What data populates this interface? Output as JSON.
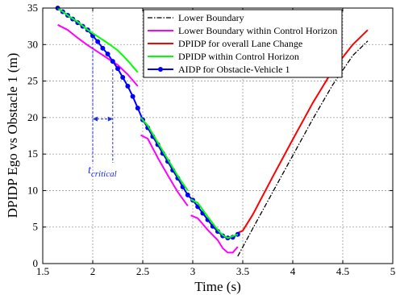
{
  "chart_data": {
    "type": "line",
    "title": "",
    "xlabel": "Time (s)",
    "ylabel": "DPIDP Ego vs Obstacle 1 (m)",
    "xlim": [
      1.5,
      5
    ],
    "ylim": [
      0,
      35
    ],
    "xticks": [
      "1.5",
      "2",
      "2.5",
      "3",
      "3.5",
      "4",
      "4.5",
      "5"
    ],
    "yticks": [
      "0",
      "5",
      "10",
      "15",
      "20",
      "25",
      "30",
      "35"
    ],
    "grid": true,
    "legend_position": "top-right",
    "annotation": "t_critical",
    "annotation_main": "t",
    "annotation_sub": "critical",
    "annotation_x": [
      2.0,
      2.2
    ],
    "series": [
      {
        "name": "Lower Boundary",
        "color": "#000000",
        "style": "dashdot",
        "segments": [
          [
            [
              3.45,
              1.0
            ],
            [
              3.6,
              4.8
            ],
            [
              3.8,
              9.8
            ],
            [
              4.0,
              14.8
            ],
            [
              4.2,
              19.8
            ],
            [
              4.4,
              24.5
            ],
            [
              4.6,
              28.5
            ],
            [
              4.75,
              30.5
            ]
          ]
        ]
      },
      {
        "name": "Lower Boundary within Control Horizon",
        "color": "#ff00ff",
        "style": "solid",
        "segments": [
          [
            [
              1.65,
              32.7
            ],
            [
              1.75,
              32.0
            ],
            [
              1.85,
              30.9
            ],
            [
              1.95,
              29.9
            ],
            [
              2.05,
              29.0
            ],
            [
              2.15,
              28.1
            ],
            [
              2.25,
              27.2
            ],
            [
              2.35,
              25.9
            ],
            [
              2.45,
              24.3
            ]
          ],
          [
            [
              2.48,
              17.6
            ],
            [
              2.55,
              17.1
            ],
            [
              2.65,
              14.5
            ],
            [
              2.75,
              12.1
            ],
            [
              2.85,
              9.8
            ],
            [
              2.95,
              7.9
            ]
          ],
          [
            [
              2.98,
              6.6
            ],
            [
              3.05,
              6.2
            ],
            [
              3.15,
              4.6
            ],
            [
              3.25,
              3.2
            ],
            [
              3.3,
              2.1
            ],
            [
              3.35,
              1.5
            ],
            [
              3.4,
              1.5
            ],
            [
              3.45,
              2.3
            ]
          ]
        ]
      },
      {
        "name": "DPIDP for overall Lane Change",
        "color": "#ff0000",
        "style": "solid",
        "segments": [
          [
            [
              3.45,
              4.2
            ],
            [
              3.5,
              4.5
            ],
            [
              3.6,
              6.7
            ],
            [
              3.8,
              11.9
            ],
            [
              4.0,
              17.0
            ],
            [
              4.2,
              22.0
            ],
            [
              4.4,
              26.5
            ],
            [
              4.6,
              30.0
            ],
            [
              4.75,
              32.0
            ]
          ]
        ]
      },
      {
        "name": "DPIDP within Control Horizon",
        "color": "#00ff00",
        "style": "solid",
        "segments": [
          [
            [
              1.65,
              35.0
            ],
            [
              1.75,
              34.0
            ],
            [
              1.85,
              33.1
            ],
            [
              1.95,
              32.0
            ],
            [
              2.05,
              31.1
            ],
            [
              2.15,
              30.2
            ],
            [
              2.25,
              29.2
            ],
            [
              2.35,
              27.8
            ],
            [
              2.45,
              26.2
            ]
          ],
          [
            [
              2.48,
              20.0
            ],
            [
              2.55,
              18.9
            ],
            [
              2.65,
              16.6
            ],
            [
              2.75,
              14.3
            ],
            [
              2.85,
              12.0
            ],
            [
              2.95,
              10.0
            ]
          ],
          [
            [
              2.98,
              8.8
            ],
            [
              3.05,
              8.3
            ],
            [
              3.15,
              6.4
            ],
            [
              3.25,
              4.6
            ],
            [
              3.3,
              3.9
            ],
            [
              3.35,
              3.5
            ],
            [
              3.45,
              4.0
            ]
          ]
        ]
      },
      {
        "name": "AIDP for Obstacle-Vehicle 1",
        "color": "#0000ff",
        "style": "solid-marker",
        "segments": [
          [
            [
              1.65,
              35.0
            ],
            [
              1.7,
              34.5
            ],
            [
              1.75,
              34.0
            ],
            [
              1.8,
              33.5
            ],
            [
              1.85,
              33.0
            ],
            [
              1.9,
              32.5
            ],
            [
              1.95,
              32.0
            ],
            [
              2.0,
              31.2
            ],
            [
              2.05,
              30.4
            ],
            [
              2.1,
              29.5
            ],
            [
              2.15,
              28.7
            ],
            [
              2.2,
              27.7
            ],
            [
              2.25,
              26.7
            ],
            [
              2.3,
              25.5
            ],
            [
              2.35,
              24.3
            ],
            [
              2.4,
              22.9
            ],
            [
              2.45,
              21.3
            ],
            [
              2.5,
              19.7
            ],
            [
              2.55,
              18.6
            ],
            [
              2.6,
              17.4
            ],
            [
              2.65,
              16.3
            ],
            [
              2.7,
              15.1
            ],
            [
              2.75,
              14.0
            ],
            [
              2.8,
              12.8
            ],
            [
              2.85,
              11.7
            ],
            [
              2.9,
              10.5
            ],
            [
              2.95,
              9.4
            ],
            [
              3.0,
              8.7
            ],
            [
              3.05,
              7.8
            ],
            [
              3.1,
              6.9
            ],
            [
              3.15,
              6.0
            ],
            [
              3.2,
              5.1
            ],
            [
              3.25,
              4.4
            ],
            [
              3.3,
              3.8
            ],
            [
              3.35,
              3.5
            ],
            [
              3.4,
              3.6
            ],
            [
              3.45,
              4.0
            ]
          ]
        ]
      }
    ]
  }
}
